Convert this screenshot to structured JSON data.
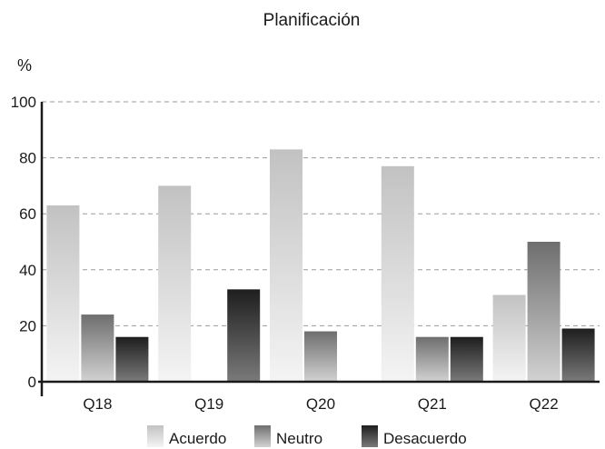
{
  "chart_data": {
    "type": "bar",
    "title": "Planificación",
    "ylabel": "%",
    "xlabel": "",
    "categories": [
      "Q18",
      "Q19",
      "Q20",
      "Q21",
      "Q22"
    ],
    "ylim": [
      0,
      100
    ],
    "yticks": [
      "0",
      "20",
      "40",
      "60",
      "80",
      "100"
    ],
    "grid": true,
    "legend": "bottom",
    "series": [
      {
        "name": "Acuerdo",
        "values": [
          63,
          70,
          83,
          77,
          31
        ],
        "color_top": "#c2c2c2",
        "color_bottom": "#f4f4f4"
      },
      {
        "name": "Neutro",
        "values": [
          24,
          0,
          18,
          16,
          50
        ],
        "color_top": "#6e6e6e",
        "color_bottom": "#d2d2d2"
      },
      {
        "name": "Desacuerdo",
        "values": [
          16,
          33,
          0,
          16,
          19
        ],
        "color_top": "#1e1e1e",
        "color_bottom": "#7a7a7a"
      }
    ]
  }
}
